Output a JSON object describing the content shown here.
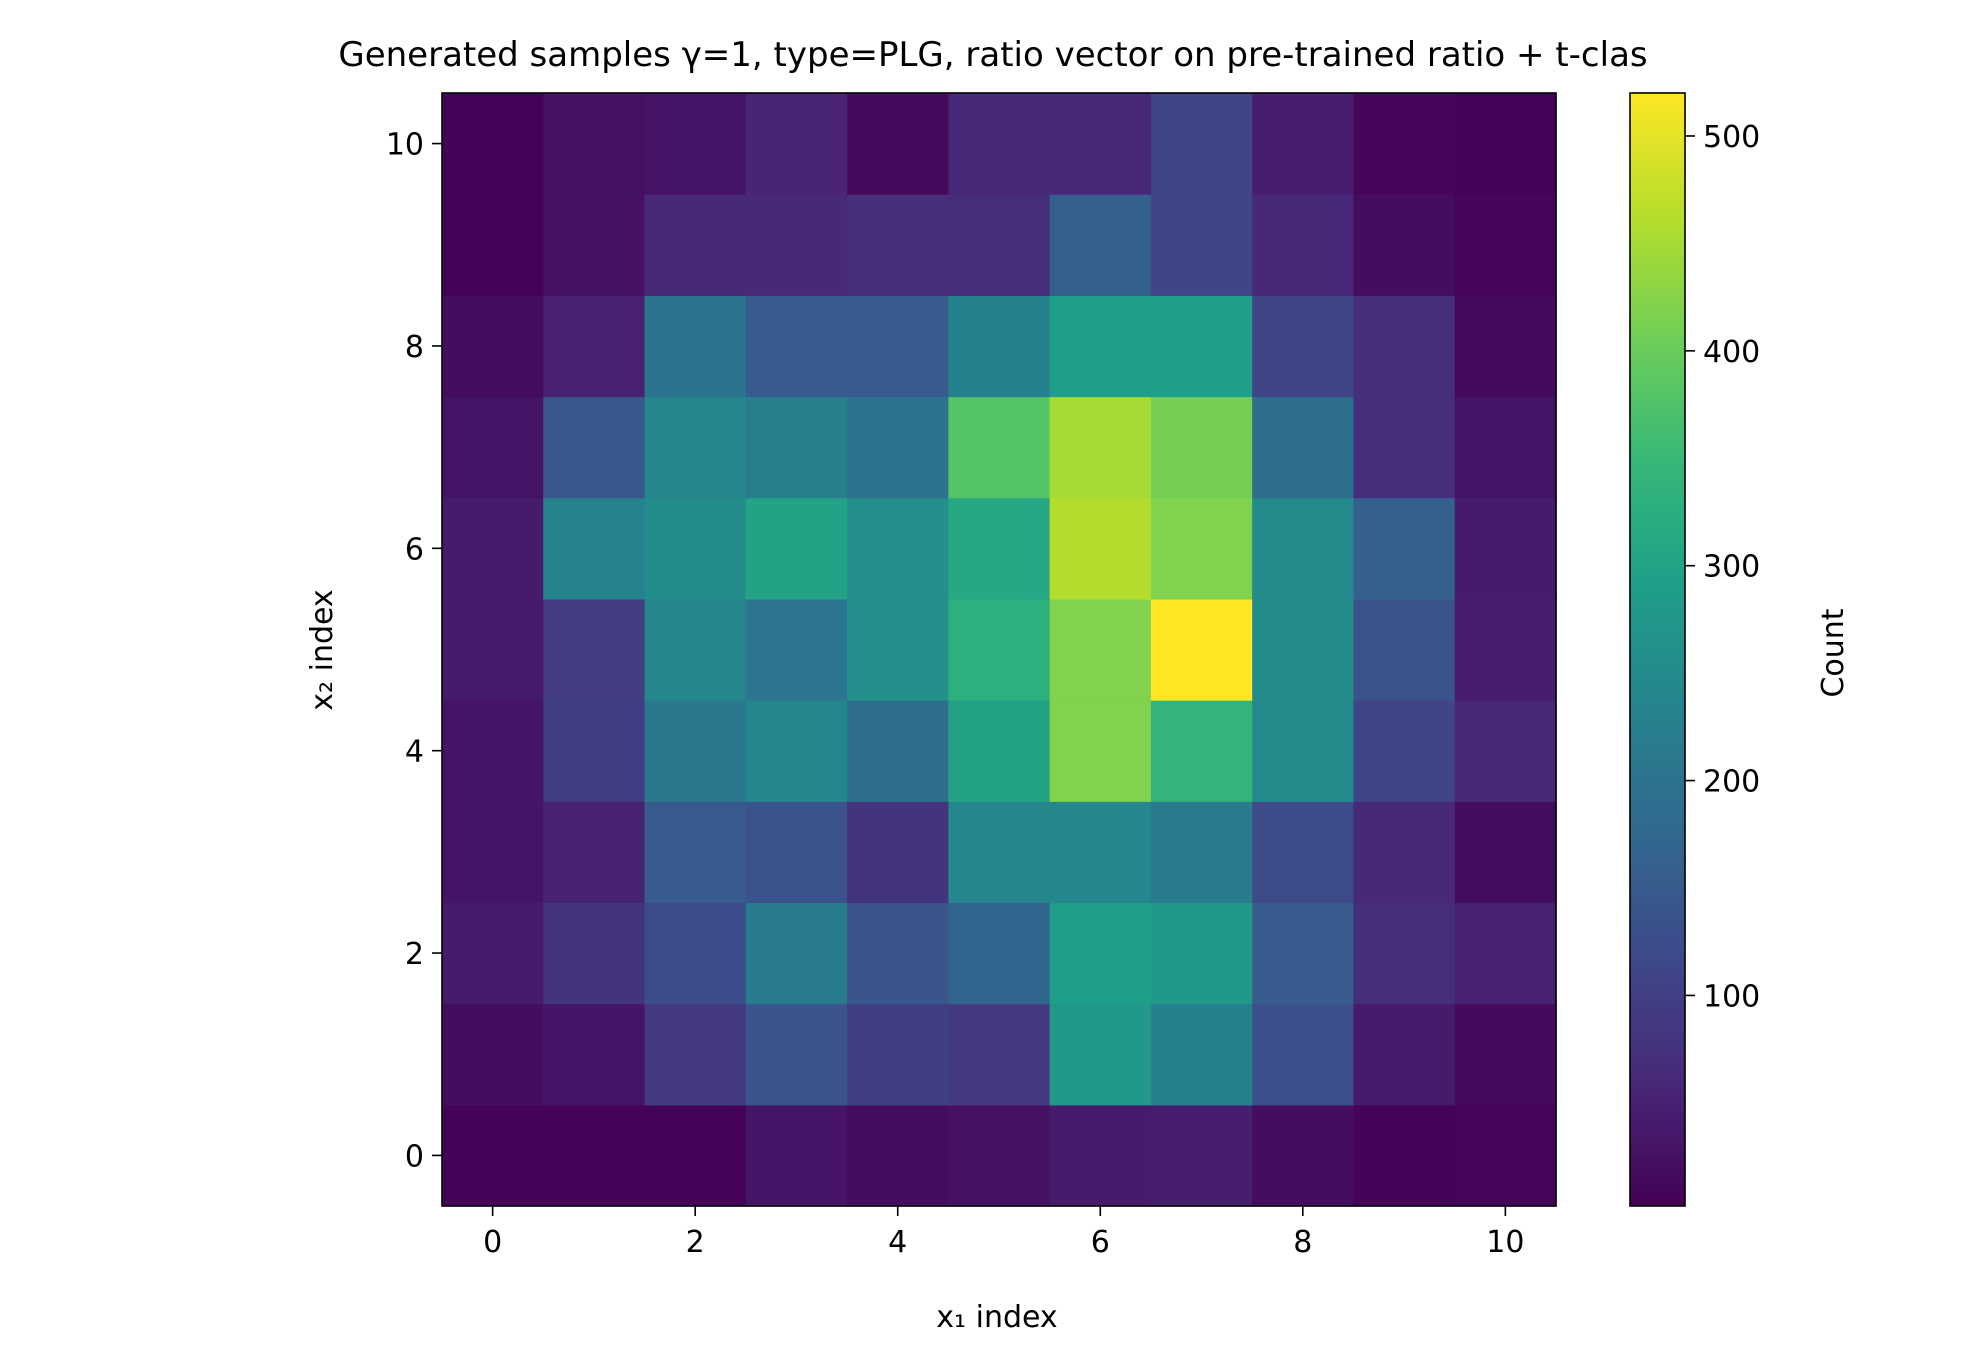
{
  "chart_data": {
    "type": "heatmap",
    "title": "Generated samples γ=1, type=PLG, ratio vector on pre-trained ratio + t-clas",
    "xlabel": "x₁ index",
    "ylabel": "x₂ index",
    "colorbar_label": "Count",
    "colormap": "viridis",
    "xlim": [
      -0.5,
      10.5
    ],
    "ylim": [
      -0.5,
      10.5
    ],
    "xticks": [
      0,
      2,
      4,
      6,
      8,
      10
    ],
    "yticks": [
      0,
      2,
      4,
      6,
      8,
      10
    ],
    "color_range": [
      2,
      520
    ],
    "colorbar_ticks": [
      100,
      200,
      300,
      400,
      500
    ],
    "grid": false,
    "x": [
      0,
      1,
      2,
      3,
      4,
      5,
      6,
      7,
      8,
      9,
      10
    ],
    "y": [
      0,
      1,
      2,
      3,
      4,
      5,
      6,
      7,
      8,
      9,
      10
    ],
    "z": [
      [
        5,
        5,
        5,
        30,
        20,
        25,
        40,
        45,
        20,
        5,
        10
      ],
      [
        20,
        30,
        90,
        140,
        100,
        90,
        280,
        230,
        130,
        40,
        15
      ],
      [
        40,
        80,
        125,
        220,
        140,
        170,
        290,
        280,
        150,
        70,
        50
      ],
      [
        30,
        50,
        150,
        135,
        80,
        240,
        240,
        220,
        120,
        60,
        20
      ],
      [
        30,
        100,
        210,
        240,
        190,
        300,
        420,
        340,
        250,
        110,
        60
      ],
      [
        40,
        95,
        240,
        205,
        260,
        330,
        420,
        520,
        250,
        135,
        45
      ],
      [
        40,
        235,
        255,
        300,
        260,
        310,
        460,
        420,
        250,
        160,
        40
      ],
      [
        30,
        145,
        240,
        225,
        200,
        380,
        450,
        410,
        190,
        70,
        30
      ],
      [
        20,
        50,
        200,
        150,
        150,
        230,
        290,
        290,
        110,
        70,
        15
      ],
      [
        5,
        25,
        60,
        60,
        70,
        70,
        160,
        110,
        60,
        20,
        10
      ],
      [
        5,
        25,
        30,
        55,
        15,
        60,
        60,
        110,
        45,
        10,
        5
      ]
    ]
  }
}
